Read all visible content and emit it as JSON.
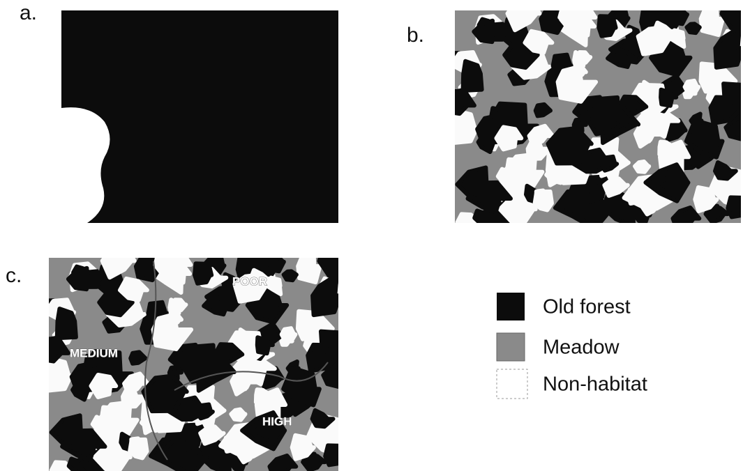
{
  "panels": {
    "a": {
      "label": "a."
    },
    "b": {
      "label": "b."
    },
    "c": {
      "label": "c.",
      "annotations": [
        "POOR",
        "MEDIUM",
        "HIGH"
      ]
    }
  },
  "legend": {
    "items": [
      "Old forest",
      "Meadow",
      "Non-habitat"
    ]
  }
}
